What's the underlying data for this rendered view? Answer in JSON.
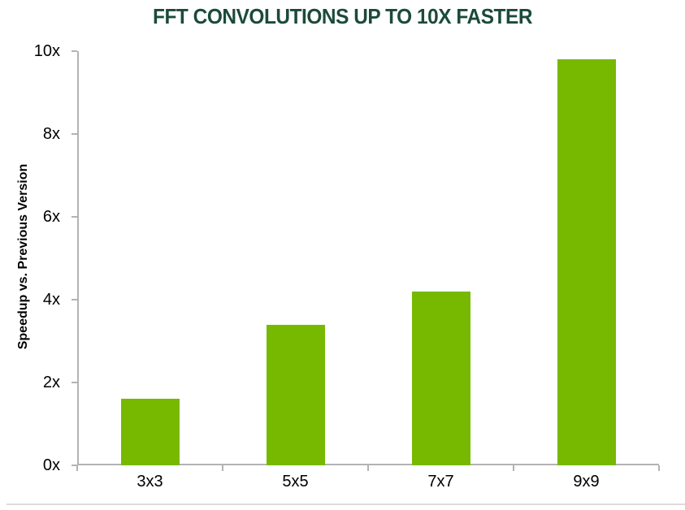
{
  "chart_data": {
    "type": "bar",
    "title": "FFT CONVOLUTIONS UP TO 10X FASTER",
    "categories": [
      "3x3",
      "5x5",
      "7x7",
      "9x9"
    ],
    "values": [
      1.6,
      3.4,
      4.2,
      9.8
    ],
    "xlabel": "",
    "ylabel": "Speedup vs. Previous Version",
    "ylim": [
      0,
      10
    ],
    "ytick_interval": 2,
    "ytick_labels": [
      "0x",
      "2x",
      "4x",
      "6x",
      "8x",
      "10x"
    ],
    "grid": false,
    "legend_position": "none",
    "bar_color": "#76B900",
    "title_color": "#1B4B38",
    "axis_color": "#B3B3B3",
    "text_color": "#000000"
  }
}
